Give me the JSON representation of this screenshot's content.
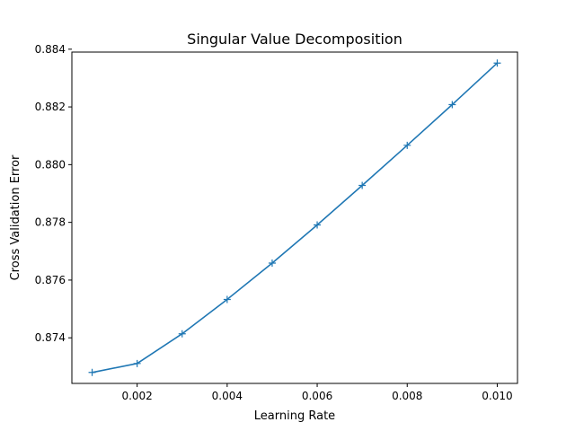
{
  "chart_data": {
    "type": "line",
    "title": "Singular Value Decomposition",
    "xlabel": "Learning Rate",
    "ylabel": "Cross Validation Error",
    "x": [
      0.001,
      0.002,
      0.003,
      0.004,
      0.005,
      0.006,
      0.007,
      0.008,
      0.009,
      0.01
    ],
    "series": [
      {
        "values": [
          0.8728,
          0.87311,
          0.87414,
          0.87533,
          0.87659,
          0.87791,
          0.87928,
          0.88067,
          0.88208,
          0.88352
        ]
      }
    ],
    "marker": "+",
    "line_color": "#1f77b4",
    "xlim": [
      0.00055,
      0.01045
    ],
    "ylim": [
      0.87242,
      0.8839
    ],
    "xticks": [
      0.002,
      0.004,
      0.006,
      0.008,
      0.01
    ],
    "xtick_labels": [
      "0.002",
      "0.004",
      "0.006",
      "0.008",
      "0.010"
    ],
    "yticks": [
      0.874,
      0.876,
      0.878,
      0.88,
      0.882,
      0.884
    ],
    "ytick_labels": [
      "0.874",
      "0.876",
      "0.878",
      "0.880",
      "0.882",
      "0.884"
    ],
    "grid": false,
    "legend": "none"
  }
}
